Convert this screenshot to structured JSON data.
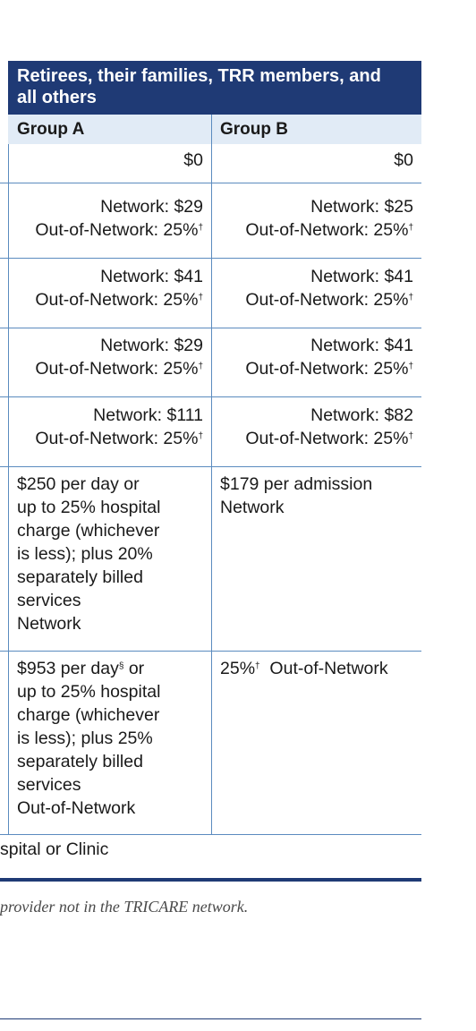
{
  "header": {
    "title_line1": "Retirees, their families, TRR members, and",
    "title_line2": "all others"
  },
  "columns": {
    "group_a": "Group A",
    "group_b": "Group B"
  },
  "rows": [
    {
      "a": [
        "$0"
      ],
      "b": [
        "$0"
      ]
    },
    {
      "a": [
        "Network: $29",
        "Out-of-Network: 25%†"
      ],
      "b": [
        "Network: $25",
        "Out-of-Network: 25%†"
      ]
    },
    {
      "a": [
        "Network: $41",
        "Out-of-Network: 25%†"
      ],
      "b": [
        "Network: $41",
        "Out-of-Network: 25%†"
      ]
    },
    {
      "a": [
        "Network: $29",
        "Out-of-Network: 25%†"
      ],
      "b": [
        "Network: $41",
        "Out-of-Network: 25%†"
      ]
    },
    {
      "a": [
        "Network: $111",
        "Out-of-Network: 25%†"
      ],
      "b": [
        "Network: $82",
        "Out-of-Network: 25%†"
      ]
    }
  ],
  "inpatient_network": {
    "a": [
      "$250 per day or",
      "up to 25% hospital",
      "charge (whichever",
      "is less); plus 20%",
      "separately billed",
      "services",
      "Network"
    ],
    "b": [
      "$179 per admission",
      "Network"
    ]
  },
  "inpatient_oon": {
    "a_first": "$953 per day",
    "a_first_sup": "§",
    "a_first_tail": " or",
    "a": [
      "up to 25% hospital",
      "charge (whichever",
      "is less); plus 25%",
      "separately billed",
      "services",
      "Out-of-Network"
    ],
    "b_pct": "25%",
    "b_sup": "†",
    "b_tail": "  Out-of-Network"
  },
  "footer_row": "spital or Clinic",
  "footnote": "provider not in the TRICARE network."
}
